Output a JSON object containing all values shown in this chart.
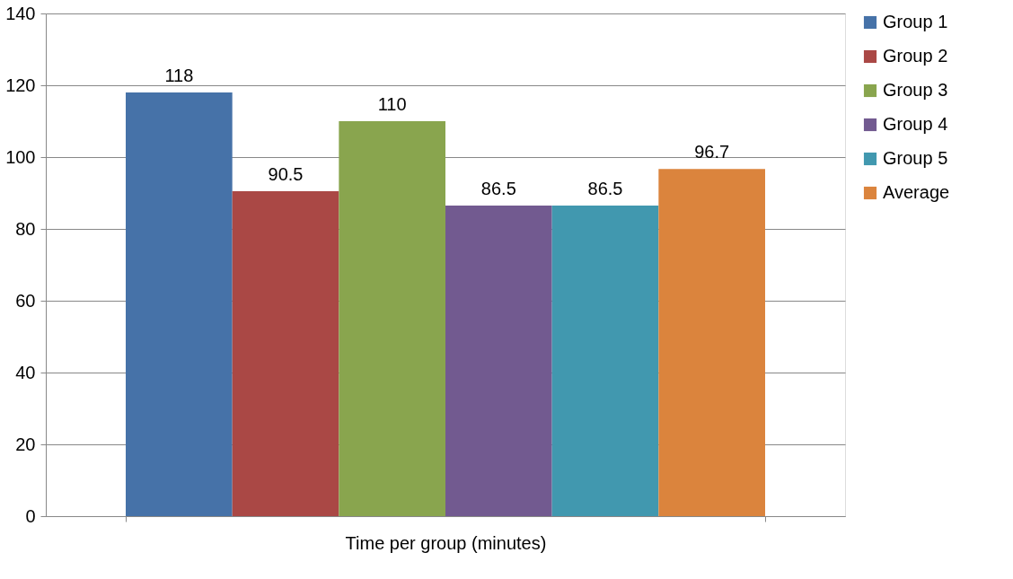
{
  "chart_data": {
    "type": "bar",
    "categories": [
      "Time per group (minutes)"
    ],
    "series": [
      {
        "name": "Group 1",
        "color": "#4672a8",
        "values": [
          118
        ]
      },
      {
        "name": "Group 2",
        "color": "#aa4845",
        "values": [
          90.5
        ]
      },
      {
        "name": "Group 3",
        "color": "#89a54e",
        "values": [
          110
        ]
      },
      {
        "name": "Group 4",
        "color": "#725a90",
        "values": [
          86.5
        ]
      },
      {
        "name": "Group 5",
        "color": "#4198af",
        "values": [
          86.5
        ]
      },
      {
        "name": "Average",
        "color": "#db843d",
        "values": [
          96.7
        ]
      }
    ],
    "data_labels": true,
    "ylim": [
      0,
      140
    ],
    "yticks": [
      0,
      20,
      40,
      60,
      80,
      100,
      120,
      140
    ],
    "grid": "y",
    "legend": "right"
  }
}
